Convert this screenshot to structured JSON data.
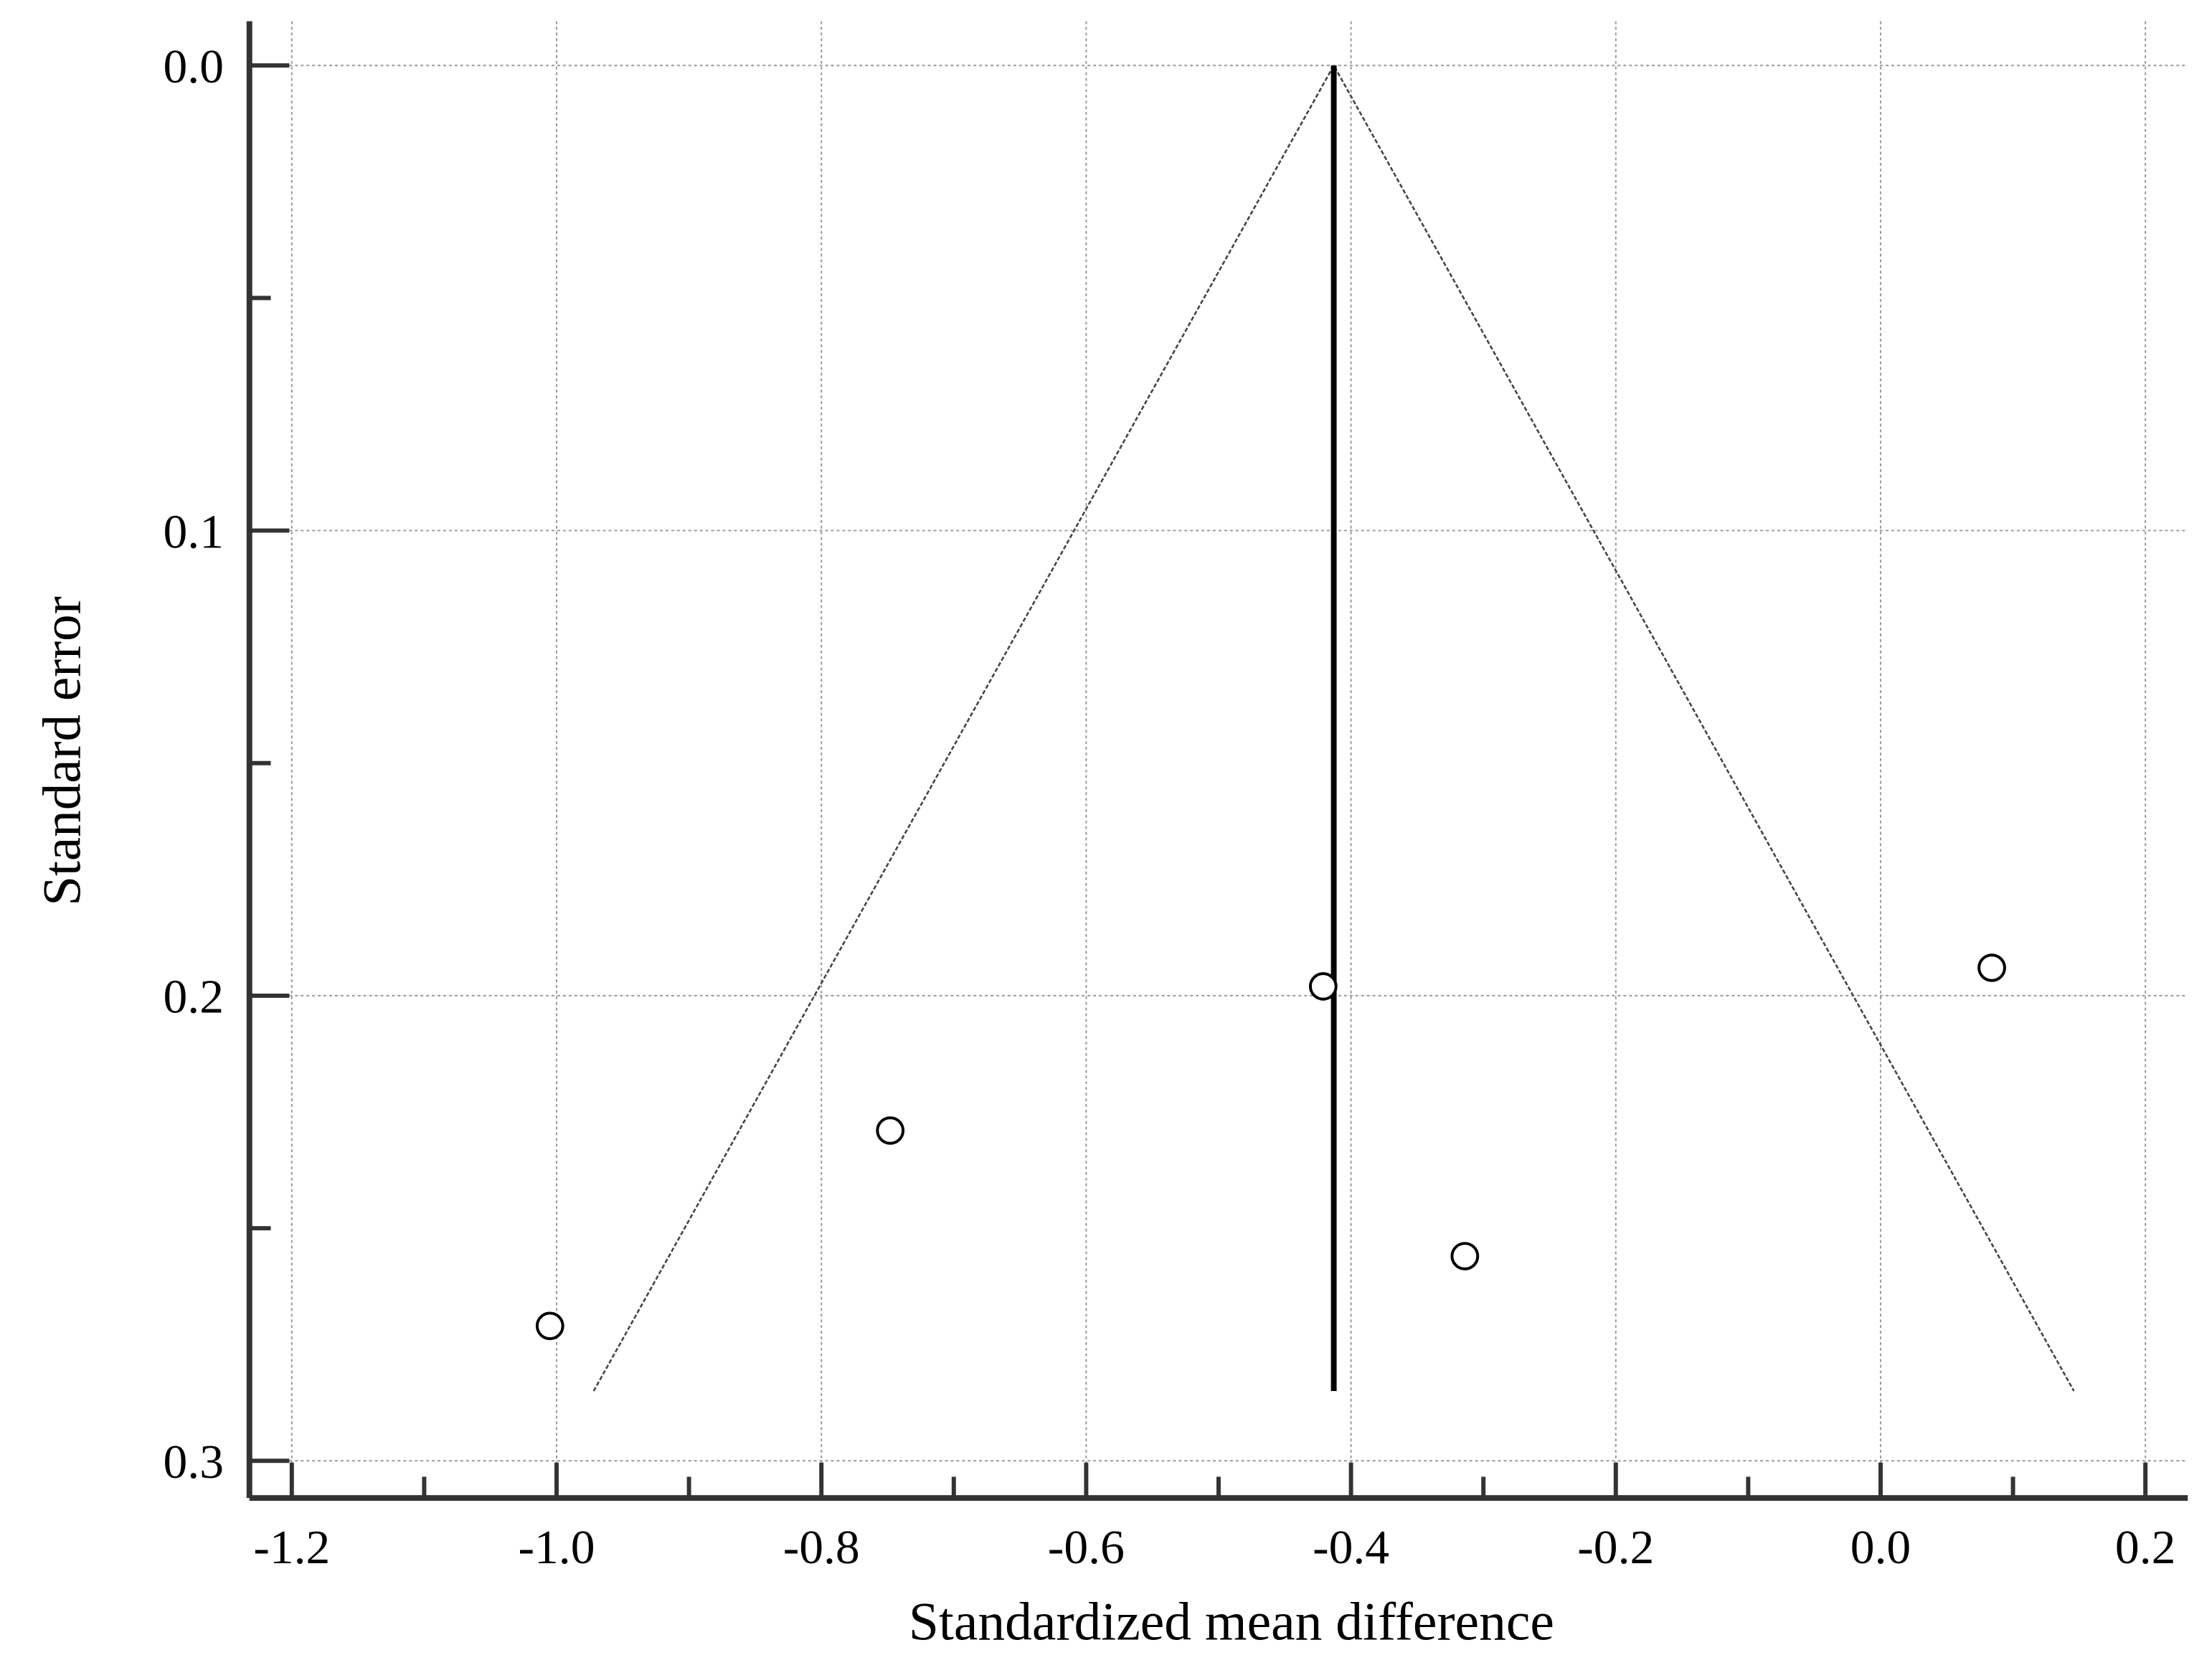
{
  "chart_data": {
    "type": "scatter",
    "x_label": "Standardized mean difference",
    "y_label": "Standard error",
    "x": [
      -1.005,
      -0.748,
      -0.421,
      -0.314,
      0.084
    ],
    "values": [
      0.271,
      0.229,
      0.198,
      0.256,
      0.194
    ],
    "marker": "open-circle",
    "color": "#000000",
    "xlim": [
      -1.232,
      0.232
    ],
    "ylim": [
      -0.0095,
      0.308
    ],
    "y_inverted": true,
    "xticks": [
      {
        "value": -1.2,
        "label": "-1.2"
      },
      {
        "value": -1.0,
        "label": "-1.0"
      },
      {
        "value": -0.8,
        "label": "-0.8"
      },
      {
        "value": -0.6,
        "label": "-0.6"
      },
      {
        "value": -0.4,
        "label": "-0.4"
      },
      {
        "value": -0.2,
        "label": "-0.2"
      },
      {
        "value": 0.0,
        "label": "0.0"
      },
      {
        "value": 0.2,
        "label": "0.2"
      }
    ],
    "xminor": [
      -1.1,
      -0.9,
      -0.7,
      -0.5,
      -0.3,
      -0.1,
      0.1
    ],
    "yticks": [
      {
        "value": 0.0,
        "label": "0.0"
      },
      {
        "value": 0.1,
        "label": "0.1"
      },
      {
        "value": 0.2,
        "label": "0.2"
      },
      {
        "value": 0.3,
        "label": "0.3"
      }
    ],
    "yminor": [
      0.05,
      0.15,
      0.25
    ],
    "grid": true,
    "reference_line": {
      "x": -0.413,
      "y": [
        0,
        0.285
      ]
    },
    "funnel": {
      "x": [
        -0.972,
        -0.413,
        0.146
      ],
      "y": [
        0.285,
        0,
        0.285
      ]
    }
  }
}
